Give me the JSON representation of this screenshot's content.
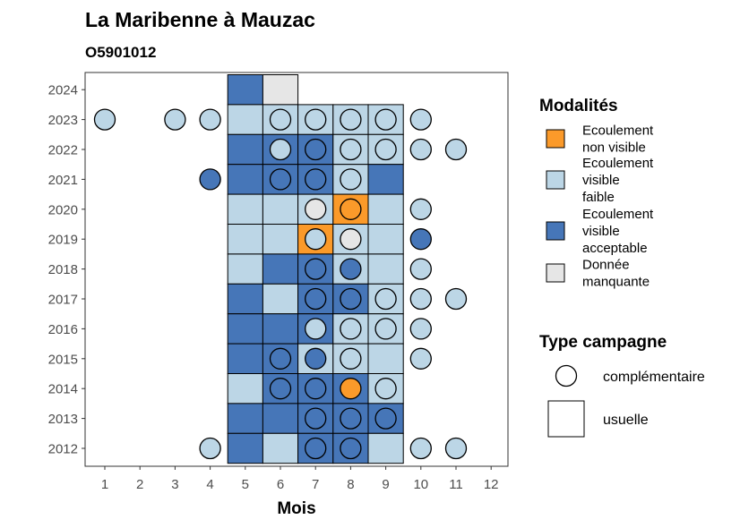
{
  "chart_data": {
    "type": "heatmap",
    "title": "La Maribenne à Mauzac",
    "subtitle": "O5901012",
    "xlabel": "Mois",
    "ylabel": "",
    "x_ticks": [
      "1",
      "2",
      "3",
      "4",
      "5",
      "6",
      "7",
      "8",
      "9",
      "10",
      "11",
      "12"
    ],
    "y_ticks": [
      "2012",
      "2013",
      "2014",
      "2015",
      "2016",
      "2017",
      "2018",
      "2019",
      "2020",
      "2021",
      "2022",
      "2023",
      "2024"
    ],
    "xlim": [
      0.5,
      12.5
    ],
    "ylim": [
      2011.5,
      2024.5
    ],
    "grid": false,
    "legend_position": "right",
    "colors": {
      "non_visible": "#fb9a2a",
      "faible": "#bcd6e6",
      "acceptable": "#4676b8",
      "manquante": "#e6e6e6"
    },
    "legend": {
      "modalites_title": "Modalités",
      "modalites": [
        {
          "key": "non_visible",
          "lines": [
            "Ecoulement",
            "non visible"
          ]
        },
        {
          "key": "faible",
          "lines": [
            "Ecoulement",
            "visible",
            "faible"
          ]
        },
        {
          "key": "acceptable",
          "lines": [
            "Ecoulement",
            "visible",
            "acceptable"
          ]
        },
        {
          "key": "manquante",
          "lines": [
            "Donnée",
            "manquante"
          ]
        }
      ],
      "campagne_title": "Type campagne",
      "campagne": [
        {
          "shape": "circle",
          "label": "complémentaire"
        },
        {
          "shape": "square",
          "label": "usuelle"
        }
      ]
    },
    "squares_usuelle": [
      {
        "year": 2024,
        "month": 5,
        "cat": "acceptable"
      },
      {
        "year": 2024,
        "month": 6,
        "cat": "manquante"
      },
      {
        "year": 2023,
        "month": 5,
        "cat": "faible"
      },
      {
        "year": 2023,
        "month": 6,
        "cat": "faible"
      },
      {
        "year": 2023,
        "month": 7,
        "cat": "faible"
      },
      {
        "year": 2023,
        "month": 8,
        "cat": "faible"
      },
      {
        "year": 2023,
        "month": 9,
        "cat": "faible"
      },
      {
        "year": 2022,
        "month": 5,
        "cat": "acceptable"
      },
      {
        "year": 2022,
        "month": 6,
        "cat": "acceptable"
      },
      {
        "year": 2022,
        "month": 7,
        "cat": "acceptable"
      },
      {
        "year": 2022,
        "month": 8,
        "cat": "faible"
      },
      {
        "year": 2022,
        "month": 9,
        "cat": "faible"
      },
      {
        "year": 2021,
        "month": 5,
        "cat": "acceptable"
      },
      {
        "year": 2021,
        "month": 6,
        "cat": "acceptable"
      },
      {
        "year": 2021,
        "month": 7,
        "cat": "acceptable"
      },
      {
        "year": 2021,
        "month": 8,
        "cat": "faible"
      },
      {
        "year": 2021,
        "month": 9,
        "cat": "acceptable"
      },
      {
        "year": 2020,
        "month": 5,
        "cat": "faible"
      },
      {
        "year": 2020,
        "month": 6,
        "cat": "faible"
      },
      {
        "year": 2020,
        "month": 7,
        "cat": "faible"
      },
      {
        "year": 2020,
        "month": 8,
        "cat": "non_visible"
      },
      {
        "year": 2020,
        "month": 9,
        "cat": "faible"
      },
      {
        "year": 2019,
        "month": 5,
        "cat": "faible"
      },
      {
        "year": 2019,
        "month": 6,
        "cat": "faible"
      },
      {
        "year": 2019,
        "month": 7,
        "cat": "non_visible"
      },
      {
        "year": 2019,
        "month": 8,
        "cat": "faible"
      },
      {
        "year": 2019,
        "month": 9,
        "cat": "faible"
      },
      {
        "year": 2018,
        "month": 5,
        "cat": "faible"
      },
      {
        "year": 2018,
        "month": 6,
        "cat": "acceptable"
      },
      {
        "year": 2018,
        "month": 7,
        "cat": "acceptable"
      },
      {
        "year": 2018,
        "month": 8,
        "cat": "faible"
      },
      {
        "year": 2018,
        "month": 9,
        "cat": "faible"
      },
      {
        "year": 2017,
        "month": 5,
        "cat": "acceptable"
      },
      {
        "year": 2017,
        "month": 6,
        "cat": "faible"
      },
      {
        "year": 2017,
        "month": 7,
        "cat": "acceptable"
      },
      {
        "year": 2017,
        "month": 8,
        "cat": "acceptable"
      },
      {
        "year": 2017,
        "month": 9,
        "cat": "faible"
      },
      {
        "year": 2016,
        "month": 5,
        "cat": "acceptable"
      },
      {
        "year": 2016,
        "month": 6,
        "cat": "acceptable"
      },
      {
        "year": 2016,
        "month": 7,
        "cat": "acceptable"
      },
      {
        "year": 2016,
        "month": 8,
        "cat": "faible"
      },
      {
        "year": 2016,
        "month": 9,
        "cat": "faible"
      },
      {
        "year": 2015,
        "month": 5,
        "cat": "acceptable"
      },
      {
        "year": 2015,
        "month": 6,
        "cat": "acceptable"
      },
      {
        "year": 2015,
        "month": 7,
        "cat": "faible"
      },
      {
        "year": 2015,
        "month": 8,
        "cat": "faible"
      },
      {
        "year": 2015,
        "month": 9,
        "cat": "faible"
      },
      {
        "year": 2014,
        "month": 5,
        "cat": "faible"
      },
      {
        "year": 2014,
        "month": 6,
        "cat": "acceptable"
      },
      {
        "year": 2014,
        "month": 7,
        "cat": "acceptable"
      },
      {
        "year": 2014,
        "month": 8,
        "cat": "acceptable"
      },
      {
        "year": 2014,
        "month": 9,
        "cat": "faible"
      },
      {
        "year": 2013,
        "month": 5,
        "cat": "acceptable"
      },
      {
        "year": 2013,
        "month": 6,
        "cat": "acceptable"
      },
      {
        "year": 2013,
        "month": 7,
        "cat": "acceptable"
      },
      {
        "year": 2013,
        "month": 8,
        "cat": "acceptable"
      },
      {
        "year": 2013,
        "month": 9,
        "cat": "acceptable"
      },
      {
        "year": 2012,
        "month": 5,
        "cat": "acceptable"
      },
      {
        "year": 2012,
        "month": 6,
        "cat": "faible"
      },
      {
        "year": 2012,
        "month": 7,
        "cat": "acceptable"
      },
      {
        "year": 2012,
        "month": 8,
        "cat": "acceptable"
      },
      {
        "year": 2012,
        "month": 9,
        "cat": "faible"
      }
    ],
    "circles_complementaire": [
      {
        "year": 2023,
        "month": 1,
        "cat": "faible"
      },
      {
        "year": 2023,
        "month": 3,
        "cat": "faible"
      },
      {
        "year": 2023,
        "month": 4,
        "cat": "faible"
      },
      {
        "year": 2023,
        "month": 6,
        "cat": "faible"
      },
      {
        "year": 2023,
        "month": 7,
        "cat": "faible"
      },
      {
        "year": 2023,
        "month": 8,
        "cat": "faible"
      },
      {
        "year": 2023,
        "month": 9,
        "cat": "faible"
      },
      {
        "year": 2023,
        "month": 10,
        "cat": "faible"
      },
      {
        "year": 2022,
        "month": 6,
        "cat": "faible"
      },
      {
        "year": 2022,
        "month": 7,
        "cat": "acceptable"
      },
      {
        "year": 2022,
        "month": 8,
        "cat": "faible"
      },
      {
        "year": 2022,
        "month": 9,
        "cat": "faible"
      },
      {
        "year": 2022,
        "month": 10,
        "cat": "faible"
      },
      {
        "year": 2022,
        "month": 11,
        "cat": "faible"
      },
      {
        "year": 2021,
        "month": 4,
        "cat": "acceptable"
      },
      {
        "year": 2021,
        "month": 6,
        "cat": "acceptable"
      },
      {
        "year": 2021,
        "month": 7,
        "cat": "acceptable"
      },
      {
        "year": 2021,
        "month": 8,
        "cat": "faible"
      },
      {
        "year": 2020,
        "month": 7,
        "cat": "manquante"
      },
      {
        "year": 2020,
        "month": 8,
        "cat": "non_visible"
      },
      {
        "year": 2020,
        "month": 10,
        "cat": "faible"
      },
      {
        "year": 2019,
        "month": 7,
        "cat": "faible"
      },
      {
        "year": 2019,
        "month": 8,
        "cat": "manquante"
      },
      {
        "year": 2019,
        "month": 10,
        "cat": "acceptable"
      },
      {
        "year": 2018,
        "month": 7,
        "cat": "acceptable"
      },
      {
        "year": 2018,
        "month": 8,
        "cat": "acceptable"
      },
      {
        "year": 2018,
        "month": 10,
        "cat": "faible"
      },
      {
        "year": 2017,
        "month": 7,
        "cat": "acceptable"
      },
      {
        "year": 2017,
        "month": 8,
        "cat": "acceptable"
      },
      {
        "year": 2017,
        "month": 9,
        "cat": "faible"
      },
      {
        "year": 2017,
        "month": 10,
        "cat": "faible"
      },
      {
        "year": 2017,
        "month": 11,
        "cat": "faible"
      },
      {
        "year": 2016,
        "month": 7,
        "cat": "faible"
      },
      {
        "year": 2016,
        "month": 8,
        "cat": "faible"
      },
      {
        "year": 2016,
        "month": 9,
        "cat": "faible"
      },
      {
        "year": 2016,
        "month": 10,
        "cat": "faible"
      },
      {
        "year": 2015,
        "month": 6,
        "cat": "acceptable"
      },
      {
        "year": 2015,
        "month": 7,
        "cat": "acceptable"
      },
      {
        "year": 2015,
        "month": 8,
        "cat": "faible"
      },
      {
        "year": 2015,
        "month": 10,
        "cat": "faible"
      },
      {
        "year": 2014,
        "month": 6,
        "cat": "acceptable"
      },
      {
        "year": 2014,
        "month": 7,
        "cat": "acceptable"
      },
      {
        "year": 2014,
        "month": 8,
        "cat": "non_visible"
      },
      {
        "year": 2014,
        "month": 9,
        "cat": "faible"
      },
      {
        "year": 2013,
        "month": 7,
        "cat": "acceptable"
      },
      {
        "year": 2013,
        "month": 8,
        "cat": "acceptable"
      },
      {
        "year": 2013,
        "month": 9,
        "cat": "acceptable"
      },
      {
        "year": 2012,
        "month": 4,
        "cat": "faible"
      },
      {
        "year": 2012,
        "month": 7,
        "cat": "acceptable"
      },
      {
        "year": 2012,
        "month": 8,
        "cat": "acceptable"
      },
      {
        "year": 2012,
        "month": 10,
        "cat": "faible"
      },
      {
        "year": 2012,
        "month": 11,
        "cat": "faible"
      }
    ]
  }
}
